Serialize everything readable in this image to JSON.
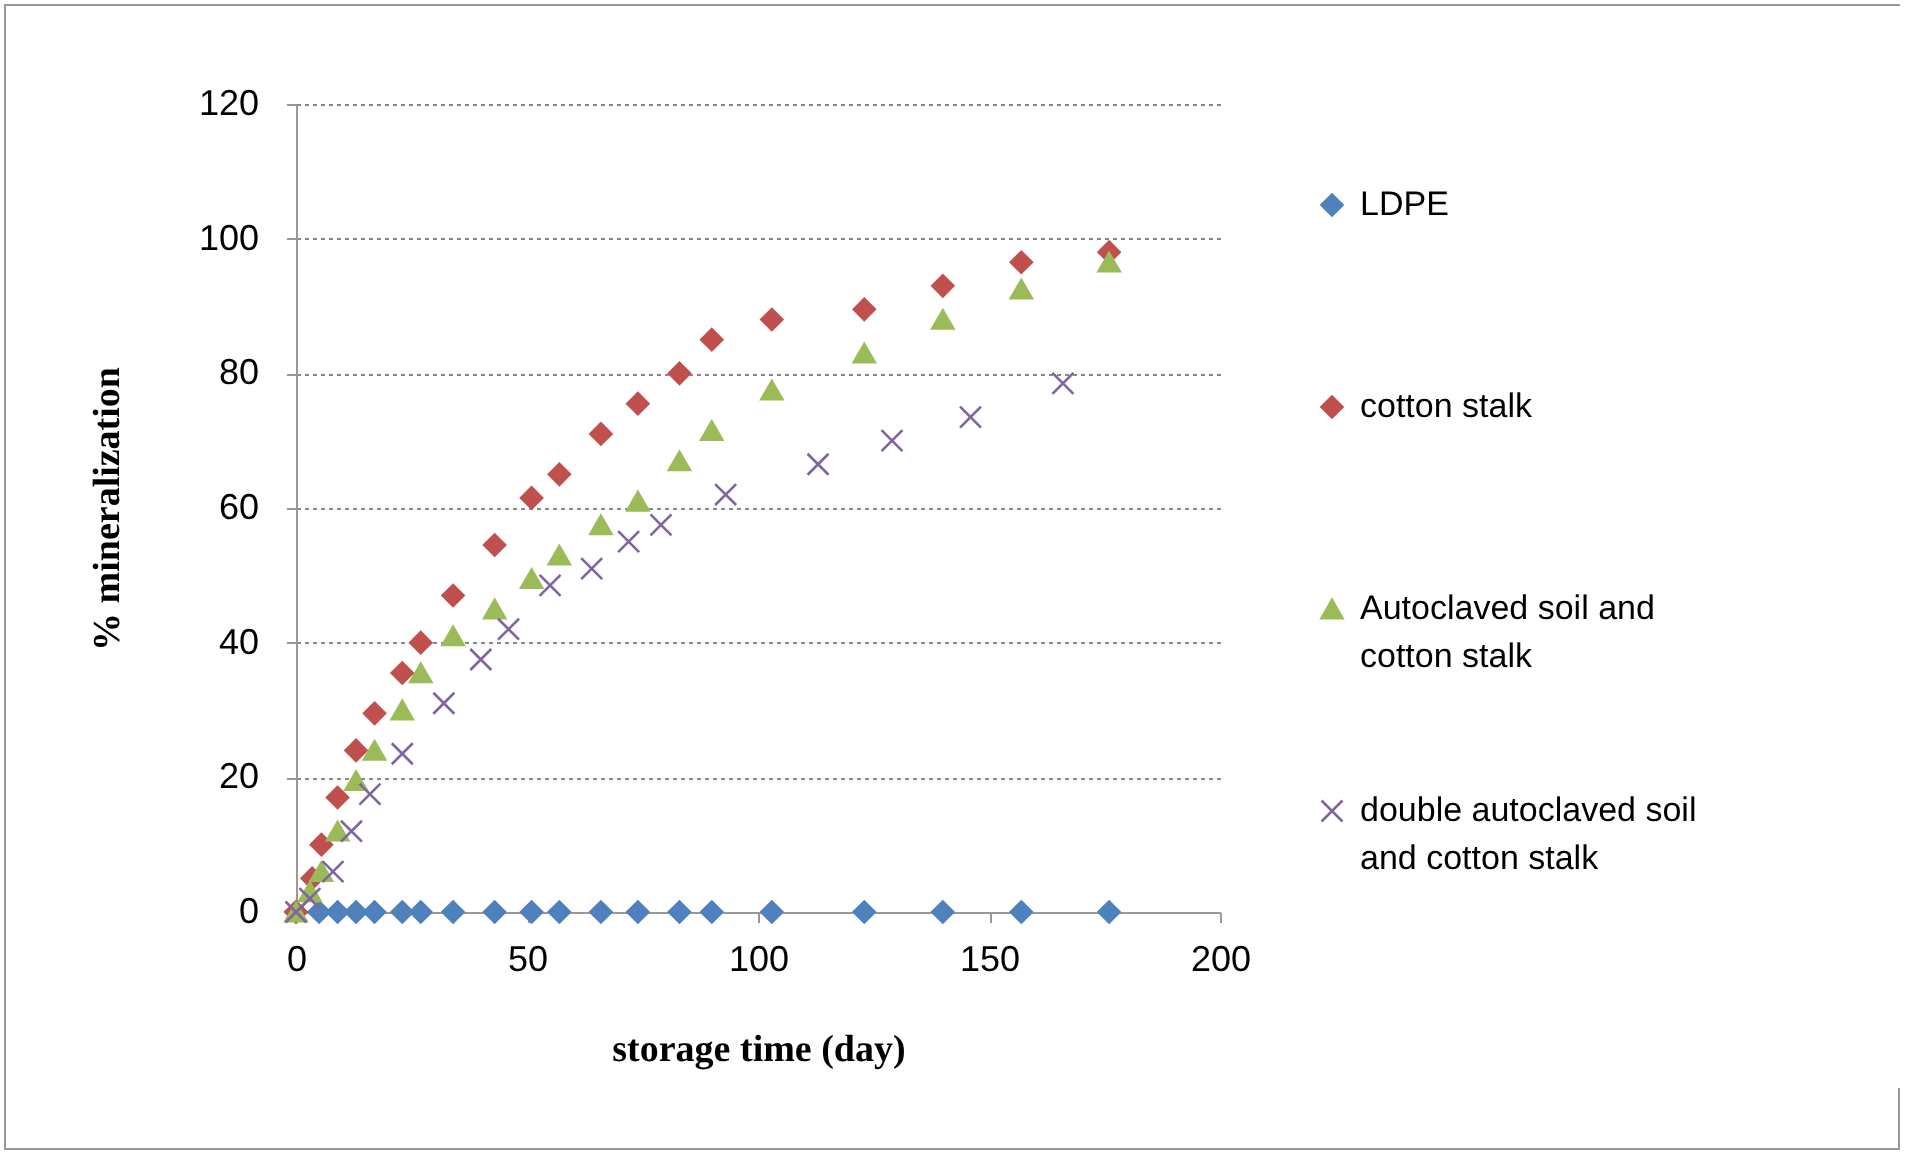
{
  "chart_data": {
    "type": "scatter",
    "xlabel": "storage time (day)",
    "ylabel": "% mineralization",
    "xlim": [
      0,
      200
    ],
    "xticks": [
      0,
      50,
      100,
      150,
      200
    ],
    "ylim": [
      0,
      120
    ],
    "yticks": [
      0,
      20,
      40,
      60,
      80,
      100,
      120
    ],
    "grid": "y",
    "legend": "right",
    "series": [
      {
        "name": "LDPE",
        "color": "#4f81bd",
        "marker": "diamond",
        "x": [
          0,
          5,
          9,
          13,
          17,
          23,
          27,
          34,
          43,
          51,
          57,
          66,
          74,
          83,
          90,
          103,
          123,
          140,
          157,
          176
        ],
        "values": [
          0,
          0,
          0,
          0,
          0,
          0,
          0,
          0,
          0,
          0,
          0,
          0,
          0,
          0,
          0,
          0,
          0,
          0,
          0,
          0
        ]
      },
      {
        "name": "cotton stalk",
        "color": "#c0504d",
        "marker": "diamond",
        "x": [
          0,
          3.5,
          5.5,
          9,
          13,
          17,
          23,
          27,
          34,
          43,
          51,
          57,
          66,
          74,
          83,
          90,
          103,
          123,
          140,
          157,
          176
        ],
        "values": [
          0,
          5,
          10,
          17,
          24,
          29.5,
          35.5,
          40,
          47,
          54.5,
          61.5,
          65,
          71,
          75.5,
          80,
          85,
          88,
          89.5,
          93,
          96.5,
          98
        ]
      },
      {
        "name": "Autoclaved soil and cotton stalk",
        "color": "#9bbb59",
        "marker": "triangle",
        "x": [
          0,
          3,
          5.5,
          9,
          13,
          17,
          23,
          27,
          34,
          43,
          51,
          57,
          66,
          74,
          83,
          90,
          103,
          123,
          140,
          157,
          176
        ],
        "values": [
          0,
          3,
          6,
          12,
          19.5,
          24,
          30,
          35.5,
          41,
          45,
          49.5,
          53,
          57.5,
          61,
          67,
          71.5,
          77.5,
          83,
          88,
          92.5,
          96.5
        ]
      },
      {
        "name": "double autoclaved soil and cotton stalk",
        "color": "#8064a2",
        "marker": "cross",
        "x": [
          0,
          3,
          8,
          12,
          16,
          23,
          32,
          40,
          46,
          55,
          64,
          72,
          79,
          93,
          113,
          129,
          146,
          166
        ],
        "values": [
          0,
          2,
          6,
          12,
          17.5,
          23.5,
          31,
          37.5,
          42,
          48.5,
          51,
          55,
          57.5,
          62,
          66.5,
          70,
          73.5,
          78.5
        ]
      }
    ]
  }
}
